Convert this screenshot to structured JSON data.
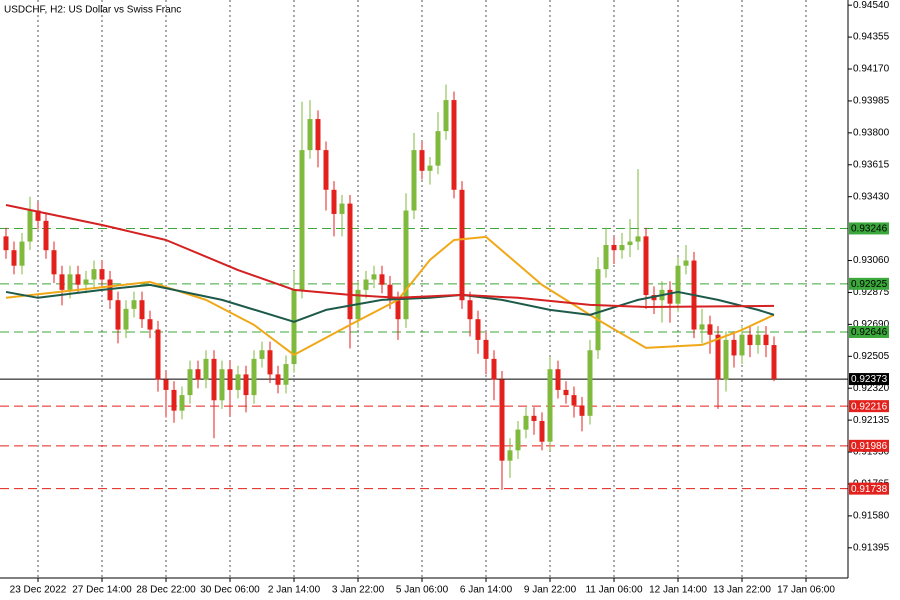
{
  "chart_data": {
    "type": "candlestick",
    "title": "USDCHF, H2:  US Dollar vs Swiss Franc",
    "xlim": [
      -0.75,
      105.25
    ],
    "xticks": [
      {
        "value": 4,
        "label": "23 Dec 2022"
      },
      {
        "value": 12,
        "label": "27 Dec 14:00"
      },
      {
        "value": 20,
        "label": "28 Dec 22:00"
      },
      {
        "value": 28,
        "label": "30 Dec 06:00"
      },
      {
        "value": 36,
        "label": "2 Jan 14:00"
      },
      {
        "value": 44,
        "label": "3 Jan 22:00"
      },
      {
        "value": 52,
        "label": "5 Jan 06:00"
      },
      {
        "value": 60,
        "label": "6 Jan 14:00"
      },
      {
        "value": 68,
        "label": "9 Jan 22:00"
      },
      {
        "value": 76,
        "label": "11 Jan 06:00"
      },
      {
        "value": 84,
        "label": "12 Jan 14:00"
      },
      {
        "value": 92,
        "label": "13 Jan 22:00"
      },
      {
        "value": 100,
        "label": "17 Jan 06:00"
      }
    ],
    "ylim": [
      0.9122,
      0.9457
    ],
    "yticks": [
      {
        "value": 0.9454,
        "label": "0.94540"
      },
      {
        "value": 0.94355,
        "label": "0.94355"
      },
      {
        "value": 0.9417,
        "label": "0.94170"
      },
      {
        "value": 0.93985,
        "label": "0.93985"
      },
      {
        "value": 0.938,
        "label": "0.93800"
      },
      {
        "value": 0.93615,
        "label": "0.93615"
      },
      {
        "value": 0.9343,
        "label": "0.93430"
      },
      {
        "value": 0.9306,
        "label": "0.93060"
      },
      {
        "value": 0.92875,
        "label": "0.92875"
      },
      {
        "value": 0.9269,
        "label": "0.92690"
      },
      {
        "value": 0.92505,
        "label": "0.92505"
      },
      {
        "value": 0.9232,
        "label": "0.92320"
      },
      {
        "value": 0.92135,
        "label": "0.92135"
      },
      {
        "value": 0.9195,
        "label": "0.91950"
      },
      {
        "value": 0.91765,
        "label": "0.91765"
      },
      {
        "value": 0.9158,
        "label": "0.91580"
      },
      {
        "value": 0.91395,
        "label": "0.91395"
      }
    ],
    "vertical_grid": true,
    "up_color": "#7fba3c",
    "down_color": "#e3211c",
    "open": [
      0.932,
      0.9312,
      0.9303,
      0.9317,
      0.9335,
      0.9329,
      0.9312,
      0.9298,
      0.9289,
      0.9298,
      0.9292,
      0.9295,
      0.9301,
      0.9295,
      0.9283,
      0.9266,
      0.9278,
      0.9283,
      0.9272,
      0.9266,
      0.9237,
      0.9231,
      0.9219,
      0.9228,
      0.9243,
      0.9237,
      0.9249,
      0.9225,
      0.9243,
      0.9231,
      0.924,
      0.9228,
      0.9249,
      0.9254,
      0.924,
      0.9234,
      0.9246,
      0.9289,
      0.937,
      0.9388,
      0.937,
      0.9347,
      0.9333,
      0.9339,
      0.9272,
      0.9289,
      0.9295,
      0.9298,
      0.9292,
      0.9283,
      0.9272,
      0.9335,
      0.937,
      0.9358,
      0.9361,
      0.9381,
      0.9399,
      0.9347,
      0.9283,
      0.9272,
      0.926,
      0.9249,
      0.9237,
      0.919,
      0.9196,
      0.9208,
      0.9216,
      0.9213,
      0.9201,
      0.9243,
      0.9231,
      0.9228,
      0.9222,
      0.9216,
      0.9254,
      0.9301,
      0.9315,
      0.9312,
      0.9315,
      0.9317,
      0.932,
      0.9286,
      0.9283,
      0.9289,
      0.9281,
      0.9303,
      0.9306,
      0.9266,
      0.9269,
      0.9263,
      0.9237,
      0.926,
      0.9251,
      0.9263,
      0.9257,
      0.9263,
      0.9257
    ],
    "high": [
      0.9325,
      0.9317,
      0.9322,
      0.9343,
      0.934,
      0.9334,
      0.9317,
      0.9303,
      0.9303,
      0.9303,
      0.93,
      0.9306,
      0.9306,
      0.93,
      0.9288,
      0.9283,
      0.9288,
      0.9288,
      0.9277,
      0.9271,
      0.9242,
      0.9236,
      0.9233,
      0.9248,
      0.9248,
      0.9254,
      0.9254,
      0.9248,
      0.9248,
      0.9245,
      0.9245,
      0.9254,
      0.9259,
      0.9259,
      0.9245,
      0.9251,
      0.93,
      0.9398,
      0.9399,
      0.9393,
      0.9375,
      0.9352,
      0.9344,
      0.9344,
      0.9294,
      0.93,
      0.9303,
      0.9303,
      0.9297,
      0.9288,
      0.9345,
      0.938,
      0.9375,
      0.9366,
      0.9392,
      0.9408,
      0.9404,
      0.9352,
      0.9288,
      0.9277,
      0.9265,
      0.9254,
      0.9242,
      0.9203,
      0.9213,
      0.9221,
      0.9221,
      0.9218,
      0.925,
      0.9248,
      0.9236,
      0.9233,
      0.9227,
      0.926,
      0.9308,
      0.9325,
      0.932,
      0.9322,
      0.933,
      0.9359,
      0.9325,
      0.9291,
      0.9294,
      0.9294,
      0.9308,
      0.9315,
      0.9311,
      0.9278,
      0.9274,
      0.9268,
      0.9265,
      0.9265,
      0.9268,
      0.9268,
      0.9268,
      0.9268,
      0.9262
    ],
    "low": [
      0.9307,
      0.9298,
      0.9298,
      0.9312,
      0.9324,
      0.9307,
      0.9293,
      0.928,
      0.9284,
      0.9287,
      0.9287,
      0.929,
      0.929,
      0.9278,
      0.9258,
      0.9261,
      0.9273,
      0.9267,
      0.9261,
      0.923,
      0.9215,
      0.9212,
      0.9214,
      0.9223,
      0.9232,
      0.9232,
      0.9203,
      0.922,
      0.9216,
      0.9226,
      0.9218,
      0.9223,
      0.9244,
      0.9235,
      0.9229,
      0.9229,
      0.9241,
      0.9284,
      0.9365,
      0.936,
      0.9335,
      0.932,
      0.932,
      0.9255,
      0.9267,
      0.9284,
      0.929,
      0.9287,
      0.9278,
      0.926,
      0.9267,
      0.933,
      0.9353,
      0.935,
      0.9356,
      0.9376,
      0.9342,
      0.9278,
      0.9262,
      0.9252,
      0.924,
      0.9225,
      0.9173,
      0.918,
      0.9191,
      0.9203,
      0.9205,
      0.9196,
      0.9196,
      0.9226,
      0.9223,
      0.9215,
      0.9207,
      0.9211,
      0.9249,
      0.9296,
      0.9304,
      0.9307,
      0.9308,
      0.9312,
      0.9278,
      0.9275,
      0.927,
      0.927,
      0.9276,
      0.9298,
      0.9261,
      0.9258,
      0.9252,
      0.922,
      0.923,
      0.9244,
      0.9246,
      0.925,
      0.9252,
      0.925,
      0.9236
    ],
    "close": [
      0.9312,
      0.9303,
      0.9317,
      0.9335,
      0.9329,
      0.9312,
      0.9298,
      0.9289,
      0.9298,
      0.9292,
      0.9295,
      0.9301,
      0.9295,
      0.9283,
      0.9266,
      0.9278,
      0.9283,
      0.9272,
      0.9266,
      0.9237,
      0.9231,
      0.9219,
      0.9228,
      0.9243,
      0.9237,
      0.9249,
      0.9225,
      0.9243,
      0.9231,
      0.924,
      0.9228,
      0.9249,
      0.9254,
      0.924,
      0.9234,
      0.9246,
      0.9289,
      0.937,
      0.9388,
      0.937,
      0.9347,
      0.9333,
      0.9339,
      0.9272,
      0.9289,
      0.9295,
      0.9298,
      0.9292,
      0.9283,
      0.9272,
      0.9335,
      0.937,
      0.9358,
      0.9361,
      0.9381,
      0.9399,
      0.9347,
      0.9283,
      0.9272,
      0.926,
      0.9249,
      0.9237,
      0.919,
      0.9196,
      0.9208,
      0.9216,
      0.9213,
      0.9201,
      0.9243,
      0.9231,
      0.9228,
      0.9222,
      0.9216,
      0.9254,
      0.9301,
      0.9315,
      0.9312,
      0.9315,
      0.9317,
      0.932,
      0.9286,
      0.9283,
      0.9289,
      0.9281,
      0.9303,
      0.9306,
      0.9266,
      0.9269,
      0.9263,
      0.9237,
      0.926,
      0.9251,
      0.9263,
      0.9257,
      0.9263,
      0.9257,
      0.92373
    ],
    "overlays": [
      {
        "color": "#f0a818",
        "x": [
          0,
          18,
          25,
          31,
          36,
          43,
          49,
          53,
          56,
          60,
          67,
          74,
          80,
          87,
          92,
          96
        ],
        "values": [
          0.92844,
          0.92936,
          0.92832,
          0.92687,
          0.92513,
          0.92687,
          0.92832,
          0.93064,
          0.93179,
          0.93197,
          0.92919,
          0.92716,
          0.92554,
          0.92571,
          0.92658,
          0.92745
        ]
      },
      {
        "color": "#1d5a4a",
        "x": [
          0,
          4,
          12,
          18,
          27,
          36,
          40,
          47,
          53,
          57,
          62,
          68,
          73,
          79,
          84,
          89,
          94,
          96
        ],
        "values": [
          0.92878,
          0.92844,
          0.9289,
          0.92919,
          0.92832,
          0.92705,
          0.92774,
          0.92832,
          0.92844,
          0.92861,
          0.92832,
          0.92774,
          0.92745,
          0.92832,
          0.92878,
          0.92832,
          0.92774,
          0.92745
        ]
      },
      {
        "color": "#d42121",
        "x": [
          0,
          12,
          20,
          29,
          36,
          43,
          49,
          57,
          64,
          73,
          80,
          96
        ],
        "values": [
          0.93382,
          0.93266,
          0.93179,
          0.93005,
          0.9289,
          0.92861,
          0.92844,
          0.92861,
          0.92844,
          0.92803,
          0.92791,
          0.92797
        ]
      }
    ],
    "levels": [
      {
        "value": 0.93246,
        "label": "0.93246",
        "color": "#3aa83a",
        "text_color": "#000000",
        "dashed": true
      },
      {
        "value": 0.92925,
        "label": "0.92925",
        "color": "#3aa83a",
        "text_color": "#000000",
        "dashed": true
      },
      {
        "value": 0.92646,
        "label": "0.92646",
        "color": "#3aa83a",
        "text_color": "#000000",
        "dashed": true
      },
      {
        "value": 0.92373,
        "label": "0.92373",
        "color": "#000000",
        "text_color": "#ffffff",
        "dashed": false
      },
      {
        "value": 0.92216,
        "label": "0.92216",
        "color": "#e3211c",
        "text_color": "#ffffff",
        "dashed": true
      },
      {
        "value": 0.91986,
        "label": "0.91986",
        "color": "#e3211c",
        "text_color": "#ffffff",
        "dashed": true
      },
      {
        "value": 0.91738,
        "label": "0.91738",
        "color": "#e3211c",
        "text_color": "#ffffff",
        "dashed": true
      }
    ]
  }
}
